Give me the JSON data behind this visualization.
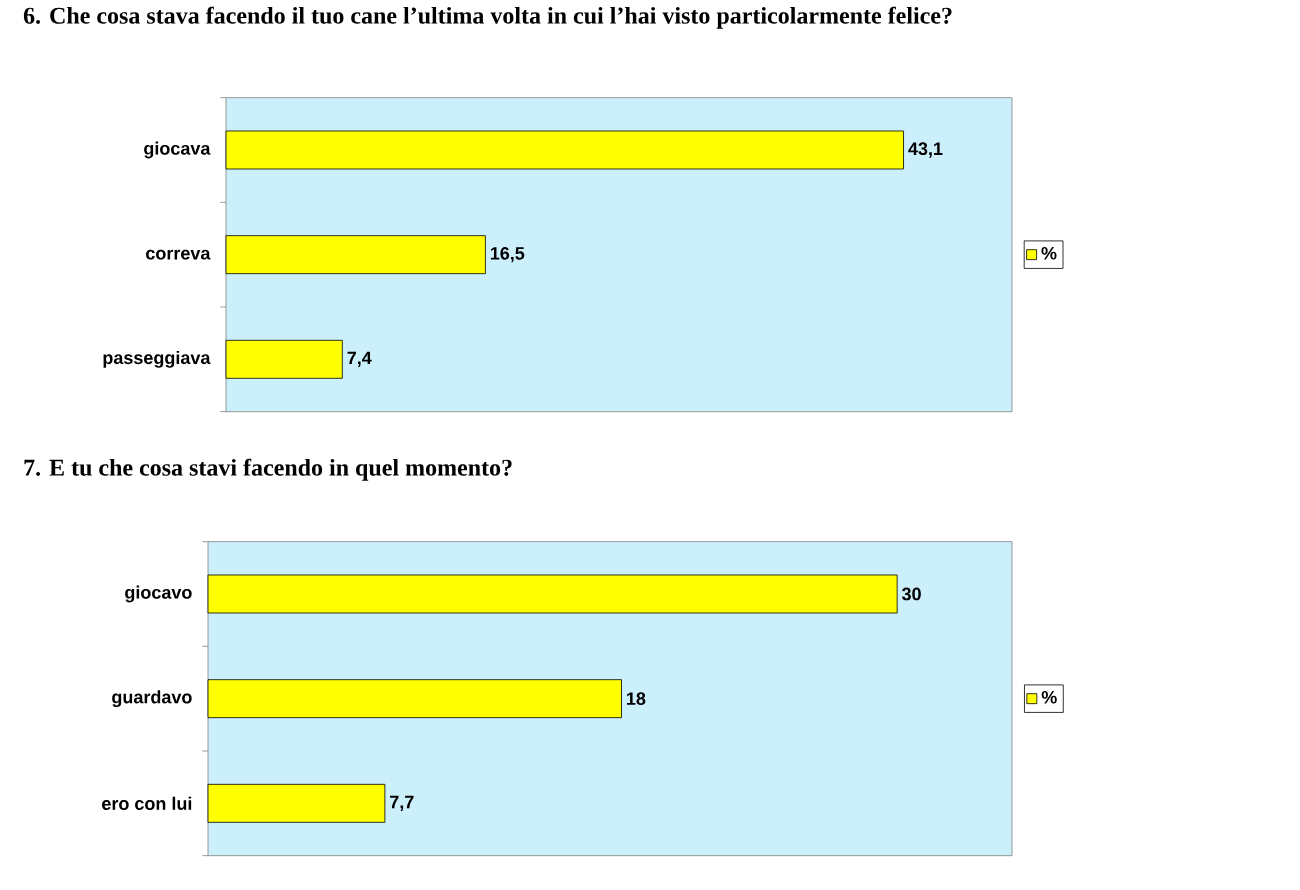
{
  "chart_data": [
    {
      "type": "bar",
      "orientation": "horizontal",
      "title": "6. Che cosa stava facendo il tuo cane l’ultima volta in cui l’hai visto particolarmente felice?",
      "categories": [
        "giocava",
        "correva",
        "passeggiava"
      ],
      "xlim": [
        0,
        50
      ],
      "tick_labels": "y",
      "legend": "right",
      "series": [
        {
          "name": "%",
          "color": "#ffff00",
          "values": [
            43.1,
            16.5,
            7.4
          ],
          "value_labels": [
            "43,1",
            "16,5",
            "7,4"
          ]
        }
      ]
    },
    {
      "type": "bar",
      "orientation": "horizontal",
      "title": "7. E tu che cosa stavi facendo in quel momento?",
      "categories": [
        "giocavo",
        "guardavo",
        "ero con lui"
      ],
      "xlim": [
        0,
        35
      ],
      "tick_labels": "y",
      "legend": "right",
      "series": [
        {
          "name": "%",
          "color": "#ffff00",
          "values": [
            30,
            18,
            7.7
          ],
          "value_labels": [
            "30",
            "18",
            "7,7"
          ]
        }
      ]
    }
  ]
}
